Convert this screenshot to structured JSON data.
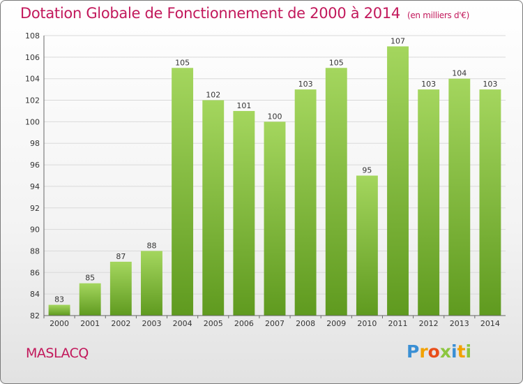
{
  "header": {
    "title": "Dotation Globale de Fonctionnement de 2000 à 2014",
    "unit": "(en milliers d'€)"
  },
  "footer": {
    "commune": "MASLACQ",
    "brand": "Proxiti",
    "brand_letters": [
      {
        "ch": "P",
        "color": "#3a8fd4"
      },
      {
        "ch": "r",
        "color": "#f2a100"
      },
      {
        "ch": "o",
        "color": "#e94e1b"
      },
      {
        "ch": "x",
        "color": "#8cc63f"
      },
      {
        "ch": "i",
        "color": "#3a8fd4"
      },
      {
        "ch": "t",
        "color": "#f2a100"
      },
      {
        "ch": "i",
        "color": "#8cc63f"
      }
    ]
  },
  "colors": {
    "accent": "#c2185b",
    "bar_top": "#a4d65e",
    "bar_bottom": "#5f9a1f",
    "grid": "#d9d9d9",
    "axis": "#666666"
  },
  "chart_data": {
    "type": "bar",
    "categories": [
      "2000",
      "2001",
      "2002",
      "2003",
      "2004",
      "2005",
      "2006",
      "2007",
      "2008",
      "2009",
      "2010",
      "2011",
      "2012",
      "2013",
      "2014"
    ],
    "values": [
      83,
      85,
      87,
      88,
      105,
      102,
      101,
      100,
      103,
      105,
      95,
      107,
      103,
      104,
      103
    ],
    "title": "Dotation Globale de Fonctionnement de 2000 à 2014",
    "ylim": [
      82,
      108
    ],
    "yticks": [
      82,
      84,
      86,
      88,
      90,
      92,
      94,
      96,
      98,
      100,
      102,
      104,
      106,
      108
    ],
    "grid": true,
    "data_labels": true
  }
}
